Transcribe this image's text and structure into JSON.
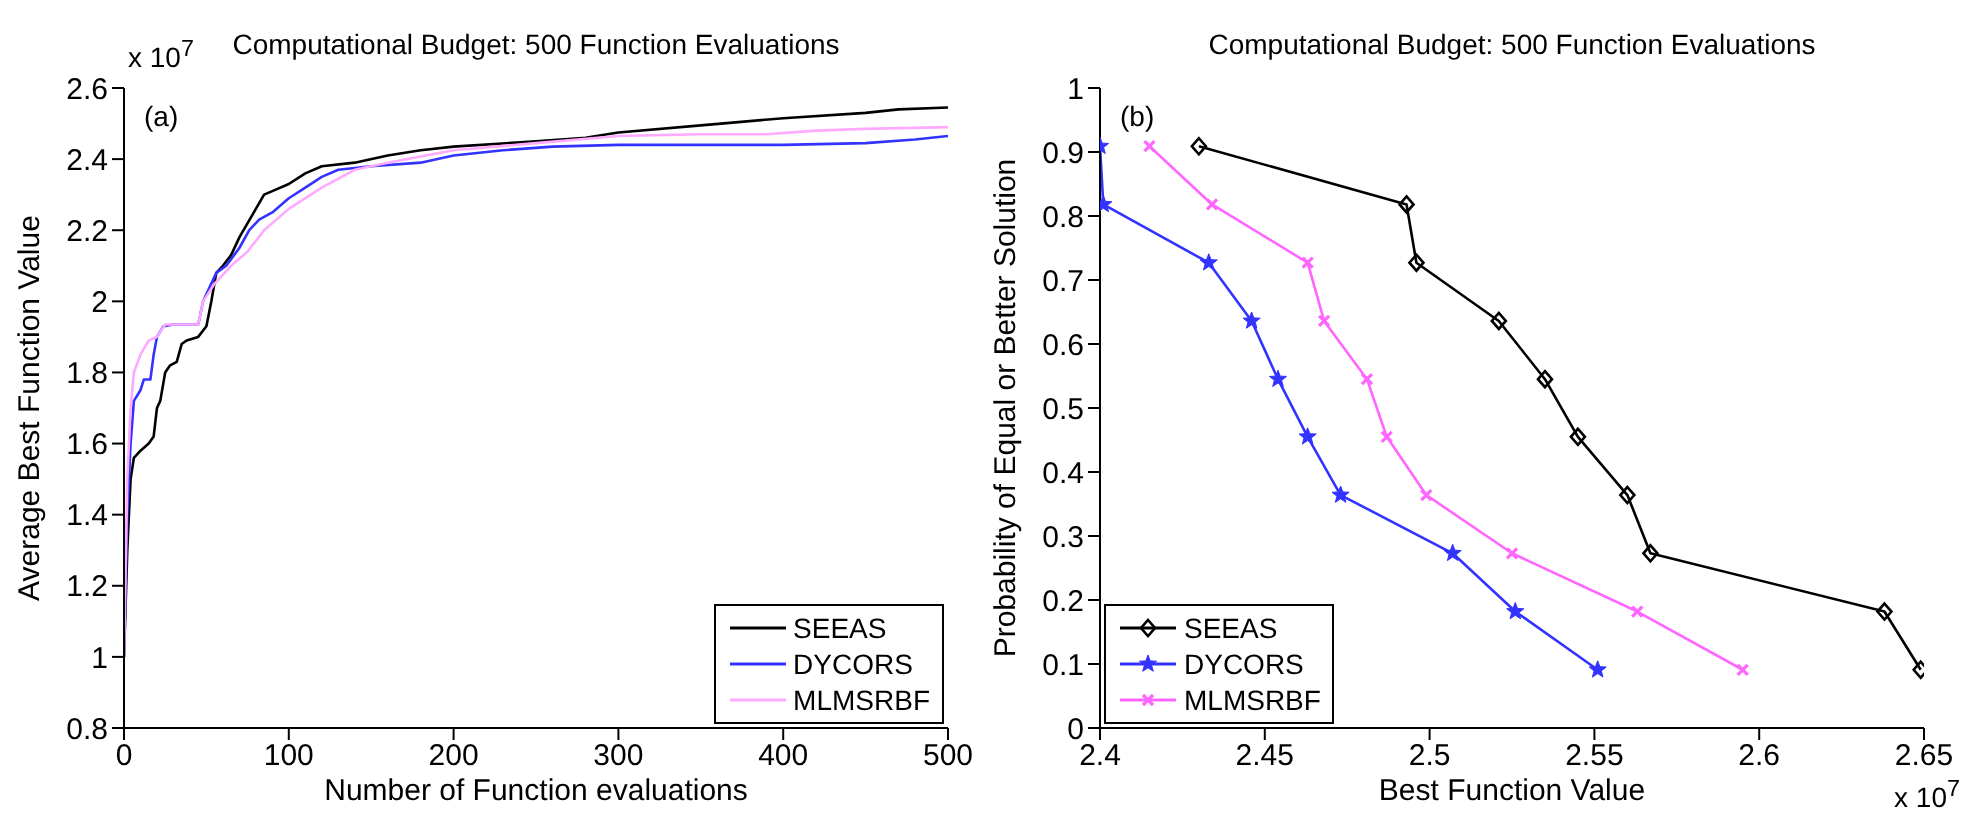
{
  "chart_data": [
    {
      "type": "line",
      "title": "Computational Budget: 500 Function Evaluations",
      "xlabel": "Number of Function evaluations",
      "ylabel": "Average Best Function Value",
      "annotations": [
        "(a)",
        "x 10$^{7}$"
      ],
      "xlim": [
        0,
        500
      ],
      "xticks": [
        0,
        100,
        200,
        300,
        400,
        500
      ],
      "ylim": [
        0.8,
        2.6
      ],
      "yticks": [
        0.8,
        1,
        1.2,
        1.4,
        1.6,
        1.8,
        2,
        2.2,
        2.4,
        2.6
      ],
      "grid": false,
      "legend": "bottom right",
      "marker": "none",
      "line_style": "solid",
      "series": [
        {
          "name": "SEEAS",
          "color": "#000000",
          "x": [
            0,
            2,
            4,
            6,
            10,
            15,
            18,
            20,
            22,
            25,
            28,
            32,
            35,
            38,
            45,
            50,
            53,
            56,
            60,
            65,
            70,
            75,
            80,
            85,
            90,
            100,
            110,
            120,
            140,
            160,
            180,
            200,
            250,
            280,
            300,
            350,
            400,
            450,
            470,
            500
          ],
          "values": [
            1.0,
            1.3,
            1.5,
            1.56,
            1.58,
            1.6,
            1.62,
            1.7,
            1.72,
            1.8,
            1.82,
            1.83,
            1.88,
            1.89,
            1.9,
            1.93,
            2.0,
            2.08,
            2.1,
            2.13,
            2.18,
            2.22,
            2.26,
            2.3,
            2.31,
            2.33,
            2.36,
            2.38,
            2.39,
            2.41,
            2.425,
            2.435,
            2.45,
            2.46,
            2.475,
            2.495,
            2.515,
            2.53,
            2.54,
            2.545
          ]
        },
        {
          "name": "DYCORS",
          "color": "#3333ff",
          "x": [
            0,
            2,
            4,
            6,
            10,
            12,
            16,
            18,
            20,
            24,
            30,
            45,
            48,
            52,
            56,
            62,
            70,
            76,
            82,
            90,
            100,
            110,
            120,
            130,
            150,
            180,
            200,
            230,
            260,
            300,
            400,
            450,
            480,
            500
          ],
          "values": [
            1.0,
            1.4,
            1.6,
            1.72,
            1.75,
            1.78,
            1.78,
            1.85,
            1.9,
            1.93,
            1.935,
            1.935,
            2.0,
            2.04,
            2.08,
            2.1,
            2.15,
            2.2,
            2.23,
            2.25,
            2.29,
            2.32,
            2.35,
            2.37,
            2.38,
            2.39,
            2.41,
            2.425,
            2.435,
            2.44,
            2.44,
            2.445,
            2.455,
            2.465
          ]
        },
        {
          "name": "MLMSRBF",
          "color": "#ffaaff",
          "x": [
            0,
            2,
            4,
            6,
            10,
            15,
            20,
            25,
            45,
            48,
            55,
            65,
            75,
            85,
            100,
            120,
            140,
            160,
            200,
            250,
            300,
            350,
            390,
            420,
            450,
            500
          ],
          "values": [
            1.0,
            1.5,
            1.7,
            1.8,
            1.85,
            1.89,
            1.9,
            1.935,
            1.935,
            2.0,
            2.05,
            2.1,
            2.14,
            2.2,
            2.26,
            2.32,
            2.37,
            2.39,
            2.425,
            2.445,
            2.465,
            2.47,
            2.47,
            2.48,
            2.485,
            2.49
          ]
        }
      ]
    },
    {
      "type": "line",
      "title": "Computational Budget: 500 Function Evaluations",
      "xlabel": "Best Function Value",
      "ylabel": "Probability of Equal or Better Solution",
      "annotations": [
        "(b)",
        "x 10$^{7}$"
      ],
      "xlim": [
        2.4,
        2.65
      ],
      "xticks": [
        2.4,
        2.45,
        2.5,
        2.55,
        2.6,
        2.65
      ],
      "ylim": [
        0,
        1
      ],
      "yticks": [
        0,
        0.1,
        0.2,
        0.3,
        0.4,
        0.5,
        0.6,
        0.7,
        0.8,
        0.9,
        1
      ],
      "grid": false,
      "legend": "bottom left",
      "line_style": "solid",
      "series": [
        {
          "name": "SEEAS",
          "color": "#000000",
          "marker": "diamond",
          "x": [
            2.43,
            2.493,
            2.496,
            2.521,
            2.535,
            2.545,
            2.56,
            2.567,
            2.638,
            2.649
          ],
          "values": [
            0.909,
            0.818,
            0.727,
            0.636,
            0.545,
            0.455,
            0.364,
            0.273,
            0.182,
            0.091
          ]
        },
        {
          "name": "DYCORS",
          "color": "#3333ff",
          "marker": "star",
          "x": [
            2.4,
            2.401,
            2.433,
            2.446,
            2.454,
            2.463,
            2.473,
            2.507,
            2.526,
            2.551
          ],
          "values": [
            0.909,
            0.818,
            0.727,
            0.636,
            0.545,
            0.455,
            0.364,
            0.273,
            0.182,
            0.091
          ]
        },
        {
          "name": "MLMSRBF",
          "color": "#ff66ff",
          "marker": "cross",
          "x": [
            2.415,
            2.434,
            2.463,
            2.468,
            2.481,
            2.487,
            2.499,
            2.525,
            2.563,
            2.595
          ],
          "values": [
            0.909,
            0.818,
            0.727,
            0.636,
            0.545,
            0.455,
            0.364,
            0.273,
            0.182,
            0.091
          ]
        }
      ]
    }
  ]
}
